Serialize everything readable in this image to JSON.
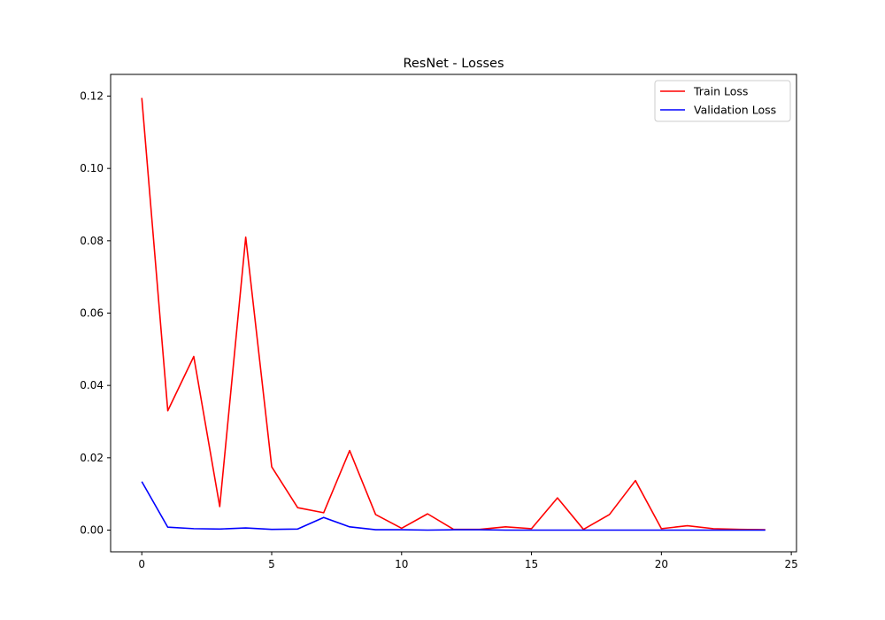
{
  "chart_data": {
    "type": "line",
    "title": "ResNet - Losses",
    "xlabel": "",
    "ylabel": "",
    "xlim": [
      -1.2,
      25.2
    ],
    "ylim": [
      -0.006,
      0.126
    ],
    "x_ticks": [
      0,
      5,
      10,
      15,
      20,
      25
    ],
    "y_ticks": [
      0.0,
      0.02,
      0.04,
      0.06,
      0.08,
      0.1,
      0.12
    ],
    "y_tick_labels": [
      "0.00",
      "0.02",
      "0.04",
      "0.06",
      "0.08",
      "0.10",
      "0.12"
    ],
    "grid": false,
    "legend_position": "top-right",
    "x": [
      0,
      1,
      2,
      3,
      4,
      5,
      6,
      7,
      8,
      9,
      10,
      11,
      12,
      13,
      14,
      15,
      16,
      17,
      18,
      19,
      20,
      21,
      22,
      23,
      24
    ],
    "series": [
      {
        "name": "Train Loss",
        "color": "#ff0000",
        "values": [
          0.1195,
          0.033,
          0.048,
          0.0065,
          0.081,
          0.0175,
          0.0062,
          0.0048,
          0.022,
          0.0043,
          0.0005,
          0.0045,
          0.0002,
          0.0002,
          0.0009,
          0.0004,
          0.0089,
          0.0002,
          0.0043,
          0.0137,
          0.0004,
          0.0012,
          0.0004,
          0.0002,
          0.0001
        ]
      },
      {
        "name": "Validation Loss",
        "color": "#0000ff",
        "values": [
          0.0134,
          0.0008,
          0.0004,
          0.0003,
          0.0006,
          0.0002,
          0.0003,
          0.0035,
          0.0009,
          0.0001,
          0.0001,
          0.0,
          0.0001,
          0.0001,
          0.0,
          0.0,
          0.0,
          0.0,
          0.0,
          0.0,
          0.0,
          0.0,
          0.0,
          0.0,
          0.0
        ]
      }
    ]
  }
}
